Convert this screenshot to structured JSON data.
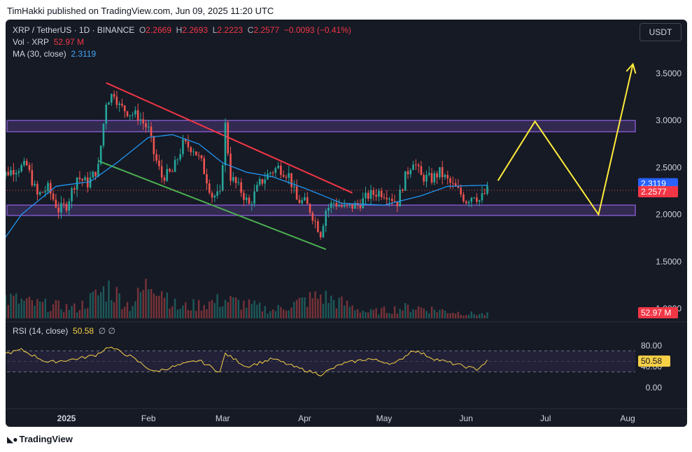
{
  "header": {
    "text": "TimHakki published on TradingView.com, Jun 09, 2025 11:20 UTC"
  },
  "legend": {
    "symbol": "XRP / TetherUS · 1D · BINANCE",
    "open_label": "O",
    "open": "2.2669",
    "high_label": "H",
    "high": "2.2693",
    "low_label": "L",
    "low": "2.2223",
    "close_label": "C",
    "close": "2.2577",
    "change": "−0.0093 (−0.41%)",
    "vol_label": "Vol · XRP",
    "vol_value": "52.97 M",
    "ma_label": "MA (30, close)",
    "ma_value": "2.3119"
  },
  "currency": "USDT",
  "rsi": {
    "label": "RSI (14, close)",
    "value": "50.58",
    "icons": "∅  ∅"
  },
  "footer": {
    "brand": "TradingView"
  },
  "colors": {
    "up": "#26a69a",
    "down": "#ef5350",
    "ma": "#2196f3",
    "rsi": "#f7d046",
    "zone": "#7e57c2",
    "resistance": "#f23645",
    "support": "#4caf50",
    "projection": "#ffeb3b"
  },
  "chart_data": {
    "type": "candlestick",
    "symbol": "XRP / TetherUS",
    "interval": "1D",
    "exchange": "BINANCE",
    "price_ticks": [
      "3.5000",
      "3.0000",
      "2.5000",
      "2.0000",
      "1.5000",
      "1.0000"
    ],
    "price_tick_values": [
      3.5,
      3.0,
      2.5,
      2.0,
      1.5,
      1.0
    ],
    "time_labels": [
      "2025",
      "Feb",
      "Mar",
      "Apr",
      "May",
      "Jun",
      "Jul",
      "Aug"
    ],
    "time_label_dates": [
      "2025-01-01",
      "2025-02-01",
      "2025-03-01",
      "2025-04-01",
      "2025-05-01",
      "2025-06-01",
      "2025-07-01",
      "2025-08-01"
    ],
    "last_price": 2.2577,
    "last_price_label": "2.2577",
    "ma_last": 2.3119,
    "ma_last_label": "2.3119",
    "volume_last_label": "52.97 M",
    "price_range": [
      1.0,
      3.75
    ],
    "close_anchors": [
      [
        "2024-12-05",
        2.15
      ],
      [
        "2024-12-08",
        2.42
      ],
      [
        "2024-12-12",
        2.48
      ],
      [
        "2024-12-17",
        2.52
      ],
      [
        "2024-12-21",
        2.2
      ],
      [
        "2024-12-25",
        2.28
      ],
      [
        "2024-12-29",
        2.05
      ],
      [
        "2025-01-01",
        2.1
      ],
      [
        "2025-01-05",
        2.4
      ],
      [
        "2025-01-09",
        2.33
      ],
      [
        "2025-01-13",
        2.5
      ],
      [
        "2025-01-16",
        3.2
      ],
      [
        "2025-01-19",
        3.3
      ],
      [
        "2025-01-21",
        3.15
      ],
      [
        "2025-01-25",
        3.08
      ],
      [
        "2025-01-28",
        3.05
      ],
      [
        "2025-02-01",
        2.9
      ],
      [
        "2025-02-03",
        2.65
      ],
      [
        "2025-02-06",
        2.4
      ],
      [
        "2025-02-10",
        2.45
      ],
      [
        "2025-02-14",
        2.75
      ],
      [
        "2025-02-18",
        2.7
      ],
      [
        "2025-02-21",
        2.55
      ],
      [
        "2025-02-25",
        2.2
      ],
      [
        "2025-02-28",
        2.2
      ],
      [
        "2025-03-02",
        2.95
      ],
      [
        "2025-03-04",
        2.4
      ],
      [
        "2025-03-08",
        2.25
      ],
      [
        "2025-03-11",
        2.1
      ],
      [
        "2025-03-15",
        2.33
      ],
      [
        "2025-03-19",
        2.45
      ],
      [
        "2025-03-22",
        2.5
      ],
      [
        "2025-03-26",
        2.42
      ],
      [
        "2025-03-29",
        2.15
      ],
      [
        "2025-04-01",
        2.13
      ],
      [
        "2025-04-03",
        2.05
      ],
      [
        "2025-04-07",
        1.8
      ],
      [
        "2025-04-09",
        2.05
      ],
      [
        "2025-04-12",
        2.13
      ],
      [
        "2025-04-16",
        2.07
      ],
      [
        "2025-04-21",
        2.1
      ],
      [
        "2025-04-25",
        2.2
      ],
      [
        "2025-04-29",
        2.24
      ],
      [
        "2025-05-02",
        2.22
      ],
      [
        "2025-05-06",
        2.13
      ],
      [
        "2025-05-09",
        2.4
      ],
      [
        "2025-05-12",
        2.58
      ],
      [
        "2025-05-15",
        2.4
      ],
      [
        "2025-05-19",
        2.38
      ],
      [
        "2025-05-22",
        2.45
      ],
      [
        "2025-05-26",
        2.33
      ],
      [
        "2025-05-29",
        2.25
      ],
      [
        "2025-06-01",
        2.15
      ],
      [
        "2025-06-04",
        2.22
      ],
      [
        "2025-06-06",
        2.15
      ],
      [
        "2025-06-09",
        2.2577
      ]
    ],
    "moving_average": {
      "name": "MA (30, close)",
      "points": [
        [
          "2024-12-05",
          1.6
        ],
        [
          "2024-12-15",
          2.0
        ],
        [
          "2024-12-28",
          2.3
        ],
        [
          "2025-01-10",
          2.35
        ],
        [
          "2025-01-20",
          2.55
        ],
        [
          "2025-02-01",
          2.82
        ],
        [
          "2025-02-10",
          2.85
        ],
        [
          "2025-02-20",
          2.75
        ],
        [
          "2025-03-01",
          2.55
        ],
        [
          "2025-03-10",
          2.45
        ],
        [
          "2025-03-20",
          2.4
        ],
        [
          "2025-04-01",
          2.28
        ],
        [
          "2025-04-15",
          2.12
        ],
        [
          "2025-05-01",
          2.1
        ],
        [
          "2025-05-15",
          2.2
        ],
        [
          "2025-05-25",
          2.3
        ],
        [
          "2025-06-09",
          2.3119
        ]
      ]
    },
    "resistance_line": [
      [
        "2025-01-16",
        3.4
      ],
      [
        "2025-04-19",
        2.23
      ]
    ],
    "support_line": [
      [
        "2025-01-13",
        2.57
      ],
      [
        "2025-04-09",
        1.63
      ]
    ],
    "zones": [
      {
        "from": 2.88,
        "to": 3.0
      },
      {
        "from": 1.99,
        "to": 2.1
      }
    ],
    "projection": [
      [
        "2025-06-13",
        2.36
      ],
      [
        "2025-06-27",
        2.99
      ],
      [
        "2025-07-21",
        2.0
      ],
      [
        "2025-08-03",
        3.6
      ]
    ],
    "volume_range": [
      0,
      1.0
    ],
    "volume_anchors": [
      [
        "2024-12-05",
        0.55
      ],
      [
        "2024-12-20",
        0.35
      ],
      [
        "2025-01-05",
        0.25
      ],
      [
        "2025-01-17",
        0.75
      ],
      [
        "2025-01-25",
        0.3
      ],
      [
        "2025-02-03",
        1.0
      ],
      [
        "2025-02-12",
        0.25
      ],
      [
        "2025-03-02",
        0.45
      ],
      [
        "2025-03-20",
        0.2
      ],
      [
        "2025-04-07",
        0.55
      ],
      [
        "2025-04-25",
        0.15
      ],
      [
        "2025-05-12",
        0.28
      ],
      [
        "2025-06-01",
        0.12
      ],
      [
        "2025-06-09",
        0.1
      ]
    ],
    "rsi_ticks": [
      "80.00",
      "40.00",
      "0.00"
    ],
    "rsi_tick_values": [
      80,
      40,
      0
    ],
    "rsi_bands": [
      70,
      30
    ],
    "rsi_last": 50.58,
    "rsi_anchors": [
      [
        "2024-12-05",
        60
      ],
      [
        "2024-12-15",
        72
      ],
      [
        "2024-12-25",
        48
      ],
      [
        "2025-01-05",
        55
      ],
      [
        "2025-01-12",
        62
      ],
      [
        "2025-01-17",
        78
      ],
      [
        "2025-01-25",
        60
      ],
      [
        "2025-02-03",
        30
      ],
      [
        "2025-02-12",
        42
      ],
      [
        "2025-02-20",
        52
      ],
      [
        "2025-02-28",
        30
      ],
      [
        "2025-03-02",
        65
      ],
      [
        "2025-03-10",
        40
      ],
      [
        "2025-03-20",
        55
      ],
      [
        "2025-03-29",
        38
      ],
      [
        "2025-04-07",
        25
      ],
      [
        "2025-04-15",
        45
      ],
      [
        "2025-04-25",
        55
      ],
      [
        "2025-05-05",
        45
      ],
      [
        "2025-05-12",
        72
      ],
      [
        "2025-05-20",
        55
      ],
      [
        "2025-05-30",
        42
      ],
      [
        "2025-06-05",
        35
      ],
      [
        "2025-06-09",
        50.58
      ]
    ]
  }
}
